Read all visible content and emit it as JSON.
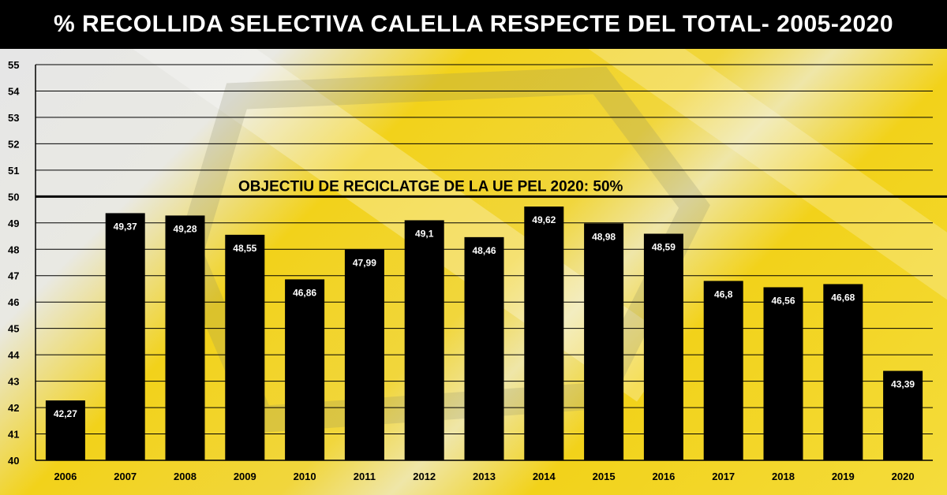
{
  "title": "% RECOLLIDA SELECTIVA CALELLA RESPECTE DEL TOTAL- 2005-2020",
  "colors": {
    "title_bg": "#000000",
    "title_text": "#ffffff",
    "bar": "#000000",
    "bar_label": "#ffffff",
    "background": "#f2d21a"
  },
  "chart_data": {
    "type": "bar",
    "title": "% RECOLLIDA SELECTIVA CALELLA RESPECTE DEL TOTAL- 2005-2020",
    "categories": [
      "2006",
      "2007",
      "2008",
      "2009",
      "2010",
      "2011",
      "2012",
      "2013",
      "2014",
      "2015",
      "2016",
      "2017",
      "2018",
      "2019",
      "2020"
    ],
    "values": [
      42.27,
      49.37,
      49.28,
      48.55,
      46.86,
      47.99,
      49.1,
      48.46,
      49.62,
      48.98,
      48.59,
      46.8,
      46.56,
      46.68,
      43.39
    ],
    "value_labels": [
      "42,27",
      "49,37",
      "49,28",
      "48,55",
      "46,86",
      "47,99",
      "49,1",
      "48,46",
      "49,62",
      "48,98",
      "48,59",
      "46,8",
      "46,56",
      "46,68",
      "43,39"
    ],
    "ylim": [
      40,
      55
    ],
    "yticks": [
      "40",
      "41",
      "42",
      "43",
      "44",
      "45",
      "46",
      "47",
      "48",
      "49",
      "50",
      "51",
      "52",
      "53",
      "54",
      "55"
    ],
    "grid": true,
    "reference_line": {
      "value": 50,
      "label": "OBJECTIU DE RECICLATGE DE LA UE PEL 2020: 50%"
    }
  }
}
